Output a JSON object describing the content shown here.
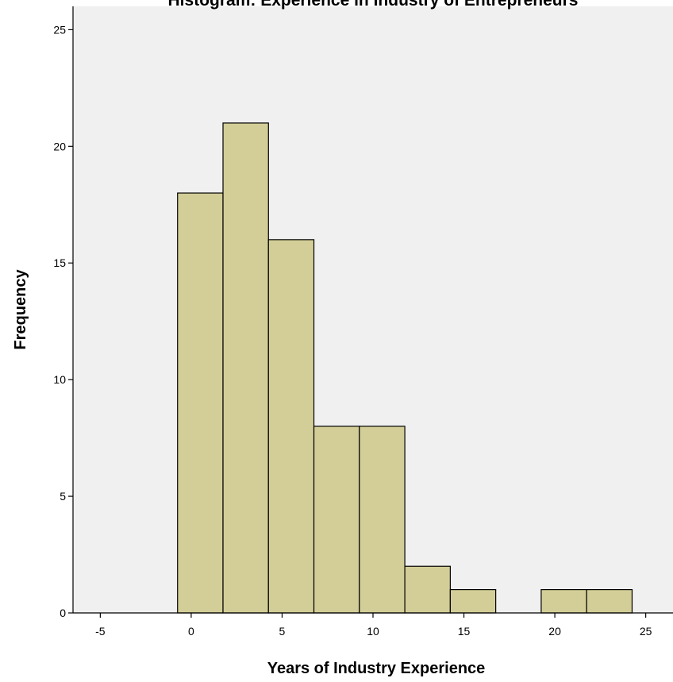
{
  "chart_data": {
    "type": "bar",
    "subtype": "histogram",
    "title": "Histogram: Experience in Industry of Entrepreneurs",
    "xlabel": "Years of Industry Experience",
    "ylabel": "Frequency",
    "xlim": [
      -6.5,
      26.5
    ],
    "ylim": [
      0,
      26
    ],
    "xticks": [
      -5,
      0,
      5,
      10,
      15,
      20,
      25
    ],
    "yticks": [
      0,
      5,
      10,
      15,
      20,
      25
    ],
    "bin_width": 2.5,
    "bins": [
      {
        "start": -0.75,
        "end": 1.75,
        "count": 18
      },
      {
        "start": 1.75,
        "end": 4.25,
        "count": 21
      },
      {
        "start": 4.25,
        "end": 6.75,
        "count": 16
      },
      {
        "start": 6.75,
        "end": 9.25,
        "count": 8
      },
      {
        "start": 9.25,
        "end": 11.75,
        "count": 8
      },
      {
        "start": 11.75,
        "end": 14.25,
        "count": 2
      },
      {
        "start": 14.25,
        "end": 16.75,
        "count": 1
      },
      {
        "start": 16.75,
        "end": 19.25,
        "count": 0
      },
      {
        "start": 19.25,
        "end": 21.75,
        "count": 1
      },
      {
        "start": 21.75,
        "end": 24.25,
        "count": 1
      }
    ],
    "grid": false,
    "colors": {
      "plot_background": "#f0f0f0",
      "bar_fill": "#d3ce97",
      "bar_stroke": "#000000"
    }
  }
}
